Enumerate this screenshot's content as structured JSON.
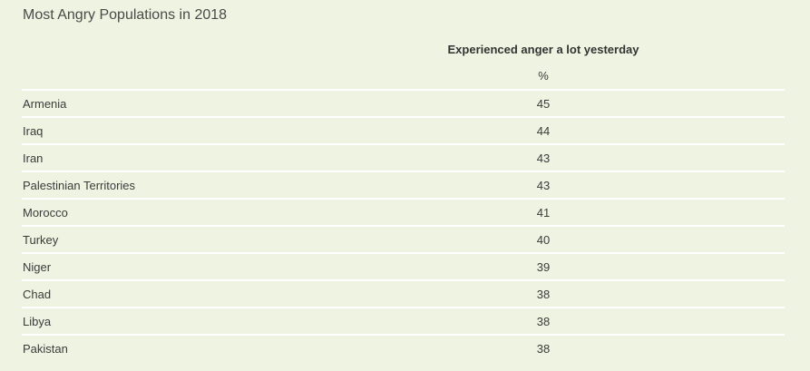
{
  "chart_data": {
    "type": "table",
    "title": "Most Angry Populations in 2018",
    "column_header": "Experienced anger a lot yesterday",
    "unit": "%",
    "rows": [
      {
        "country": "Armenia",
        "value": 45
      },
      {
        "country": "Iraq",
        "value": 44
      },
      {
        "country": "Iran",
        "value": 43
      },
      {
        "country": "Palestinian Territories",
        "value": 43
      },
      {
        "country": "Morocco",
        "value": 41
      },
      {
        "country": "Turkey",
        "value": 40
      },
      {
        "country": "Niger",
        "value": 39
      },
      {
        "country": "Chad",
        "value": 38
      },
      {
        "country": "Libya",
        "value": 38
      },
      {
        "country": "Pakistan",
        "value": 38
      }
    ]
  }
}
